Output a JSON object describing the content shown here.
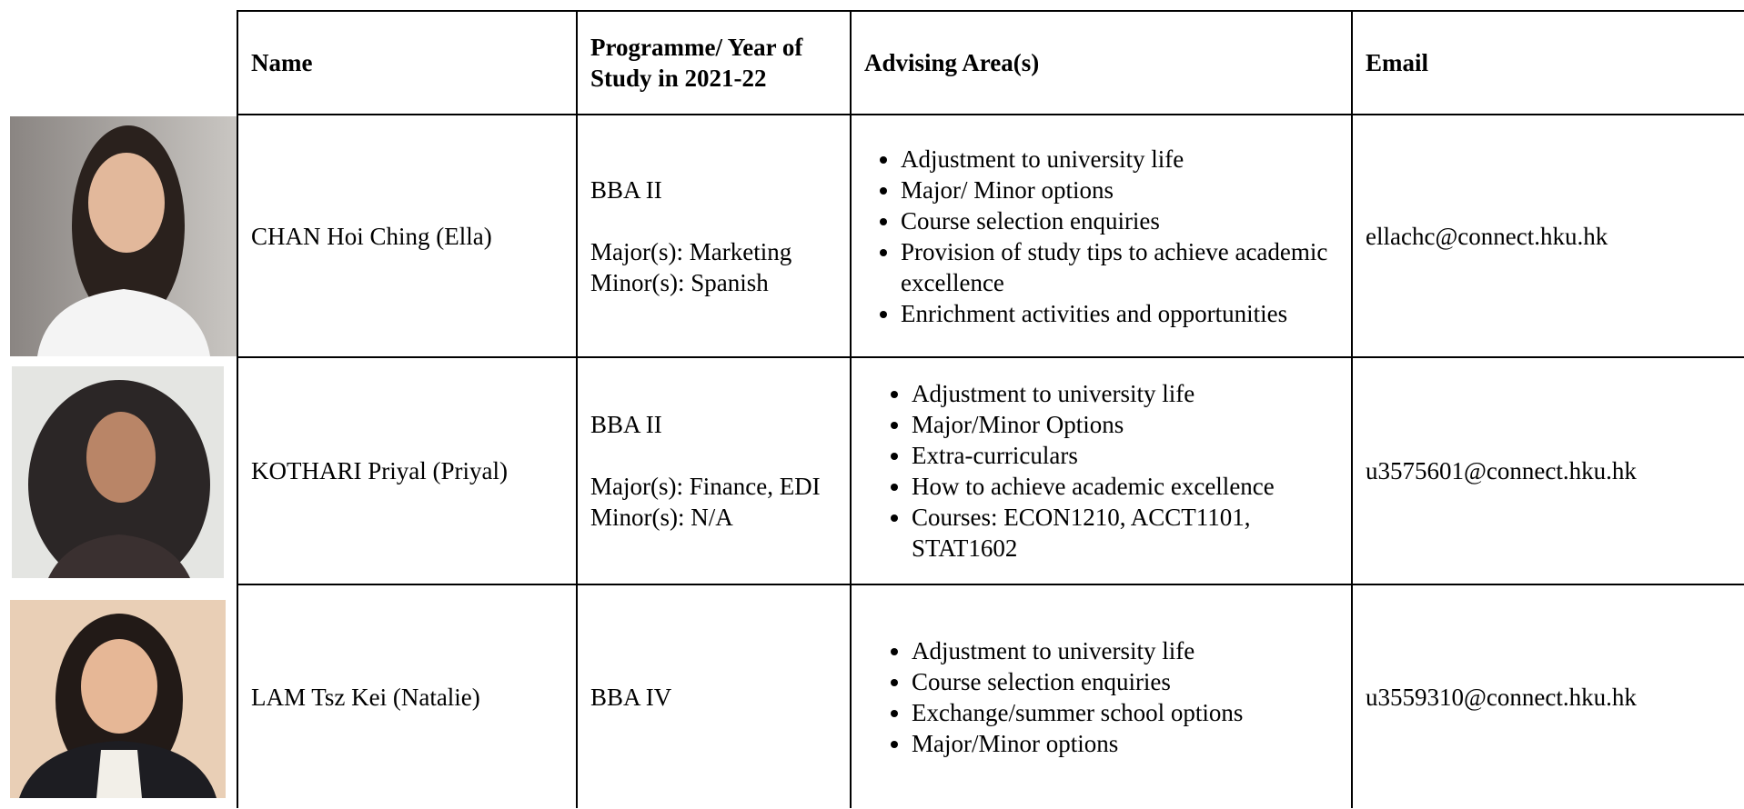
{
  "table": {
    "header": [
      "Name",
      "Programme/ Year of Study in 2021-22",
      "Advising Area(s)",
      "Email"
    ],
    "rows": [
      {
        "name": "CHAN Hoi Ching (Ella)",
        "programme": [
          "BBA II",
          "Major(s): Marketing",
          "Minor(s): Spanish"
        ],
        "advising": [
          "Adjustment to university life",
          "Major/ Minor options",
          "Course selection enquiries",
          "Provision of study tips to achieve academic excellence",
          "Enrichment activities and opportunities"
        ],
        "email": "ellachc@connect.hku.hk"
      },
      {
        "name": "KOTHARI Priyal (Priyal)",
        "programme": [
          "BBA II",
          "Major(s): Finance, EDI",
          "Minor(s): N/A"
        ],
        "advising": [
          "Adjustment to university life",
          "Major/Minor Options",
          "Extra-curriculars",
          "How to achieve academic excellence",
          "Courses: ECON1210, ACCT1101, STAT1602"
        ],
        "email": "u3575601@connect.hku.hk"
      },
      {
        "name": "LAM Tsz Kei (Natalie)",
        "programme": [
          "BBA IV"
        ],
        "advising": [
          "Adjustment to university life",
          "Course selection enquiries",
          "Exchange/summer school options",
          "Major/Minor options"
        ],
        "email": "u3559310@connect.hku.hk"
      }
    ]
  }
}
